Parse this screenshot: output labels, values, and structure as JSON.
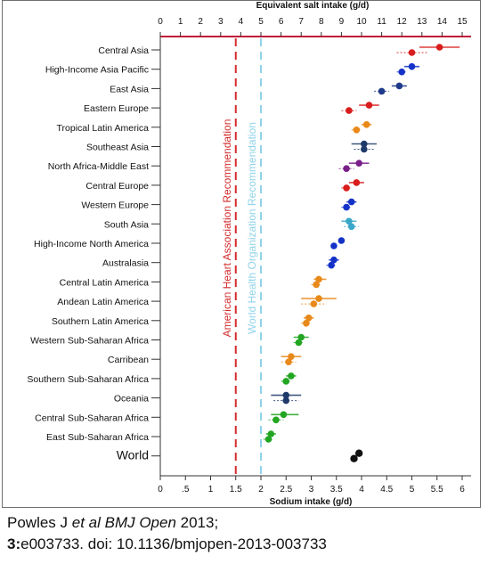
{
  "chart_data": {
    "type": "scatter",
    "title": "",
    "top_axis_label": "Equivalent salt intake (g/d)",
    "top_ticks": [
      "0",
      "1",
      "2",
      "3",
      "4",
      "5",
      "6",
      "7",
      "8",
      "9",
      "10",
      "11",
      "12",
      "13",
      "14",
      "15"
    ],
    "xlabel": "Sodium intake (g/d)",
    "bottom_ticks": [
      {
        "value": 0,
        "label": "0"
      },
      {
        "value": 0.5,
        "label": ".5"
      },
      {
        "value": 1,
        "label": "1"
      },
      {
        "value": 1.5,
        "label": "1.5"
      },
      {
        "value": 2,
        "label": "2"
      },
      {
        "value": 2.5,
        "label": "2.5"
      },
      {
        "value": 3,
        "label": "3"
      },
      {
        "value": 3.5,
        "label": "3.5"
      },
      {
        "value": 4,
        "label": "4"
      },
      {
        "value": 4.5,
        "label": "4.5"
      },
      {
        "value": 5,
        "label": "5"
      },
      {
        "value": 5.5,
        "label": "5.5"
      },
      {
        "value": 6,
        "label": "6"
      }
    ],
    "xlim": [
      0,
      6.1
    ],
    "grid": false,
    "reference_lines": [
      {
        "value": 1.5,
        "label": "American Heart Association Recommendation",
        "color": "#d42c2c"
      },
      {
        "value": 2.0,
        "label": "World Health Organization Recommendation",
        "color": "#8fd3e8"
      }
    ],
    "regions": [
      {
        "name": "Central Asia",
        "color": "#d91c1c",
        "points": [
          {
            "value": 5.55,
            "low": 5.15,
            "high": 5.95
          },
          {
            "value": 5.0,
            "low": 4.7,
            "high": 5.3
          }
        ]
      },
      {
        "name": "High-Income Asia Pacific",
        "color": "#1432c8",
        "points": [
          {
            "value": 5.0,
            "low": 4.85,
            "high": 5.15
          },
          {
            "value": 4.8,
            "low": 4.7,
            "high": 4.9
          }
        ]
      },
      {
        "name": "East Asia",
        "color": "#1f3a8a",
        "points": [
          {
            "value": 4.75,
            "low": 4.6,
            "high": 4.9
          },
          {
            "value": 4.4,
            "low": 4.25,
            "high": 4.55
          }
        ]
      },
      {
        "name": "Eastern Europe",
        "color": "#d91c1c",
        "points": [
          {
            "value": 4.15,
            "low": 3.95,
            "high": 4.35
          },
          {
            "value": 3.75,
            "low": 3.6,
            "high": 3.9
          }
        ]
      },
      {
        "name": "Tropical Latin America",
        "color": "#e8891a",
        "points": [
          {
            "value": 4.1,
            "low": 4.0,
            "high": 4.2
          },
          {
            "value": 3.9,
            "low": 3.8,
            "high": 4.0
          }
        ]
      },
      {
        "name": "Southeast Asia",
        "color": "#1f3a6a",
        "points": [
          {
            "value": 4.05,
            "low": 3.8,
            "high": 4.3
          },
          {
            "value": 4.05,
            "low": 3.85,
            "high": 4.25
          }
        ]
      },
      {
        "name": "North Africa-Middle East",
        "color": "#7a1f8a",
        "points": [
          {
            "value": 3.95,
            "low": 3.75,
            "high": 4.15
          },
          {
            "value": 3.7,
            "low": 3.55,
            "high": 3.85
          }
        ]
      },
      {
        "name": "Central Europe",
        "color": "#d91c1c",
        "points": [
          {
            "value": 3.9,
            "low": 3.75,
            "high": 4.05
          },
          {
            "value": 3.7,
            "low": 3.6,
            "high": 3.8
          }
        ]
      },
      {
        "name": "Western Europe",
        "color": "#1432c8",
        "points": [
          {
            "value": 3.8,
            "low": 3.7,
            "high": 3.9
          },
          {
            "value": 3.7,
            "low": 3.6,
            "high": 3.8
          }
        ]
      },
      {
        "name": "South Asia",
        "color": "#3aa7c8",
        "points": [
          {
            "value": 3.75,
            "low": 3.6,
            "high": 3.9
          },
          {
            "value": 3.8,
            "low": 3.65,
            "high": 3.95
          }
        ]
      },
      {
        "name": "High-Income North America",
        "color": "#1432c8",
        "points": [
          {
            "value": 3.6,
            "low": 3.55,
            "high": 3.65
          },
          {
            "value": 3.45,
            "low": 3.4,
            "high": 3.5
          }
        ]
      },
      {
        "name": "Australasia",
        "color": "#1432c8",
        "points": [
          {
            "value": 3.45,
            "low": 3.35,
            "high": 3.55
          },
          {
            "value": 3.4,
            "low": 3.3,
            "high": 3.5
          }
        ]
      },
      {
        "name": "Central Latin America",
        "color": "#e8891a",
        "points": [
          {
            "value": 3.15,
            "low": 3.05,
            "high": 3.3
          },
          {
            "value": 3.1,
            "low": 3.0,
            "high": 3.2
          }
        ]
      },
      {
        "name": "Andean Latin America",
        "color": "#e8891a",
        "points": [
          {
            "value": 3.15,
            "low": 2.8,
            "high": 3.5
          },
          {
            "value": 3.05,
            "low": 2.8,
            "high": 3.3
          }
        ]
      },
      {
        "name": "Southern Latin America",
        "color": "#e8891a",
        "points": [
          {
            "value": 2.95,
            "low": 2.85,
            "high": 3.05
          },
          {
            "value": 2.9,
            "low": 2.8,
            "high": 3.0
          }
        ]
      },
      {
        "name": "Western Sub-Saharan Africa",
        "color": "#22a622",
        "points": [
          {
            "value": 2.8,
            "low": 2.65,
            "high": 2.95
          },
          {
            "value": 2.75,
            "low": 2.65,
            "high": 2.85
          }
        ]
      },
      {
        "name": "Carribean",
        "color": "#e8891a",
        "points": [
          {
            "value": 2.6,
            "low": 2.4,
            "high": 2.8
          },
          {
            "value": 2.55,
            "low": 2.4,
            "high": 2.7
          }
        ]
      },
      {
        "name": "Southern Sub-Saharan Africa",
        "color": "#22a622",
        "points": [
          {
            "value": 2.6,
            "low": 2.5,
            "high": 2.7
          },
          {
            "value": 2.5,
            "low": 2.4,
            "high": 2.6
          }
        ]
      },
      {
        "name": "Oceania",
        "color": "#1f3a6a",
        "points": [
          {
            "value": 2.5,
            "low": 2.2,
            "high": 2.8
          },
          {
            "value": 2.5,
            "low": 2.25,
            "high": 2.75
          }
        ]
      },
      {
        "name": "Central Sub-Saharan Africa",
        "color": "#22a622",
        "points": [
          {
            "value": 2.45,
            "low": 2.2,
            "high": 2.75
          },
          {
            "value": 2.3,
            "low": 2.15,
            "high": 2.45
          }
        ]
      },
      {
        "name": "East Sub-Saharan Africa",
        "color": "#22a622",
        "points": [
          {
            "value": 2.2,
            "low": 2.1,
            "high": 2.3
          },
          {
            "value": 2.15,
            "low": 2.05,
            "high": 2.25
          }
        ]
      },
      {
        "name": "World",
        "color": "#111111",
        "points": [
          {
            "value": 3.95,
            "low": 3.9,
            "high": 4.0
          },
          {
            "value": 3.85,
            "low": 3.8,
            "high": 3.9
          }
        ]
      }
    ]
  },
  "citation": {
    "line1_author": "Powles J ",
    "line1_etal": "et al BMJ Open",
    "line1_year": " 2013;",
    "line2_volume": "3:",
    "line2_rest": "e003733. doi: 10.1136/bmjopen-2013-003733"
  }
}
